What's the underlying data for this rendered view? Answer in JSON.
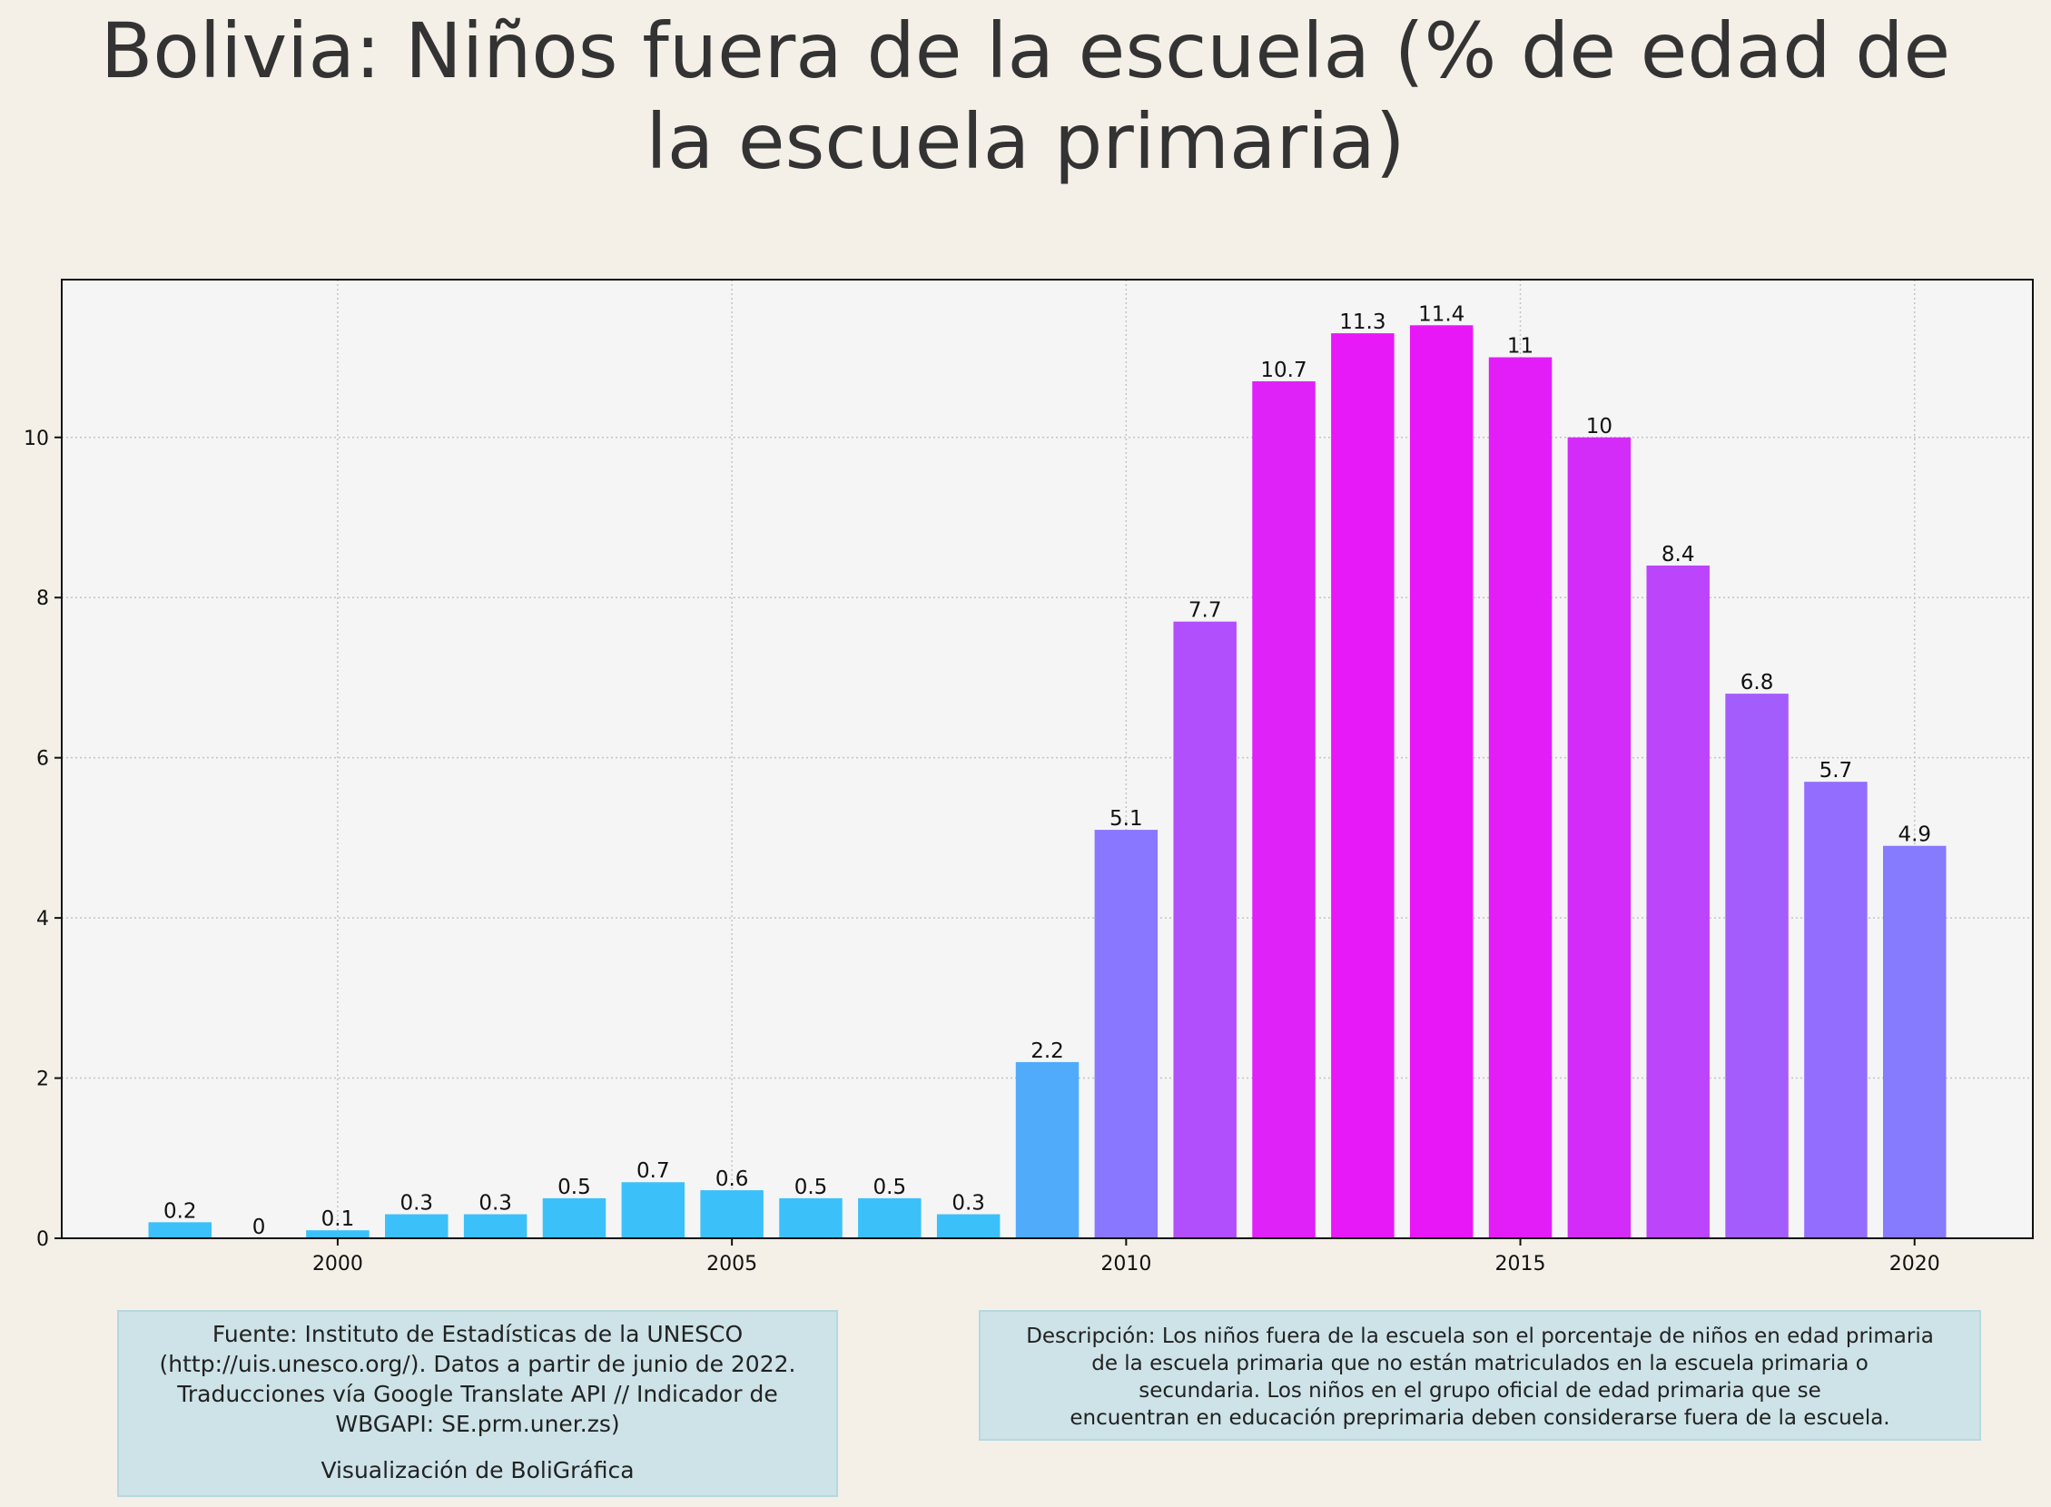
{
  "chart_data": {
    "type": "bar",
    "title": "Bolivia:  Niños fuera de la escuela (% de edad de\nla escuela primaria)",
    "x": [
      1998,
      1999,
      2000,
      2001,
      2002,
      2003,
      2004,
      2005,
      2006,
      2007,
      2008,
      2009,
      2010,
      2011,
      2012,
      2013,
      2014,
      2015,
      2016,
      2017,
      2018,
      2019,
      2020
    ],
    "values": [
      0.2,
      0,
      0.1,
      0.3,
      0.3,
      0.5,
      0.7,
      0.6,
      0.5,
      0.5,
      0.3,
      2.2,
      5.1,
      7.7,
      10.7,
      11.3,
      11.4,
      11,
      10,
      8.4,
      6.8,
      5.7,
      4.9
    ],
    "value_labels": [
      "0.2",
      "0",
      "0.1",
      "0.3",
      "0.3",
      "0.5",
      "0.7",
      "0.6",
      "0.5",
      "0.5",
      "0.3",
      "2.2",
      "5.1",
      "7.7",
      "10.7",
      "11.3",
      "11.4",
      "11",
      "10",
      "8.4",
      "6.8",
      "5.7",
      "4.9"
    ],
    "x_ticks": [
      2000,
      2005,
      2010,
      2015,
      2020
    ],
    "y_ticks": [
      0,
      2,
      4,
      6,
      8,
      10
    ],
    "xlim": [
      1996.5,
      2021.5
    ],
    "ylim": [
      0,
      11.97
    ],
    "xlabel": "",
    "ylabel": "",
    "grid": true,
    "color_scale": {
      "low": "#3bc0fa",
      "mid": "#8b76ff",
      "high": "#e817f7",
      "range": [
        0,
        11.4
      ]
    }
  },
  "source_box": {
    "lines": [
      "Fuente: Instituto de Estadísticas de la UNESCO",
      "(http://uis.unesco.org/). Datos a partir de junio de 2022.",
      "Traducciones vía Google Translate API // Indicador de",
      "WBGAPI: SE.prm.uner.zs)"
    ],
    "credit": "Visualización de BoliGráfica"
  },
  "description_box": {
    "lines": [
      "Descripción: Los niños fuera de la escuela son el porcentaje de niños en edad primaria",
      "de la escuela primaria que no están matriculados en la escuela primaria o",
      "secundaria. Los niños en el grupo oficial de edad primaria que se",
      "encuentran en educación preprimaria deben considerarse fuera de la escuela."
    ]
  }
}
